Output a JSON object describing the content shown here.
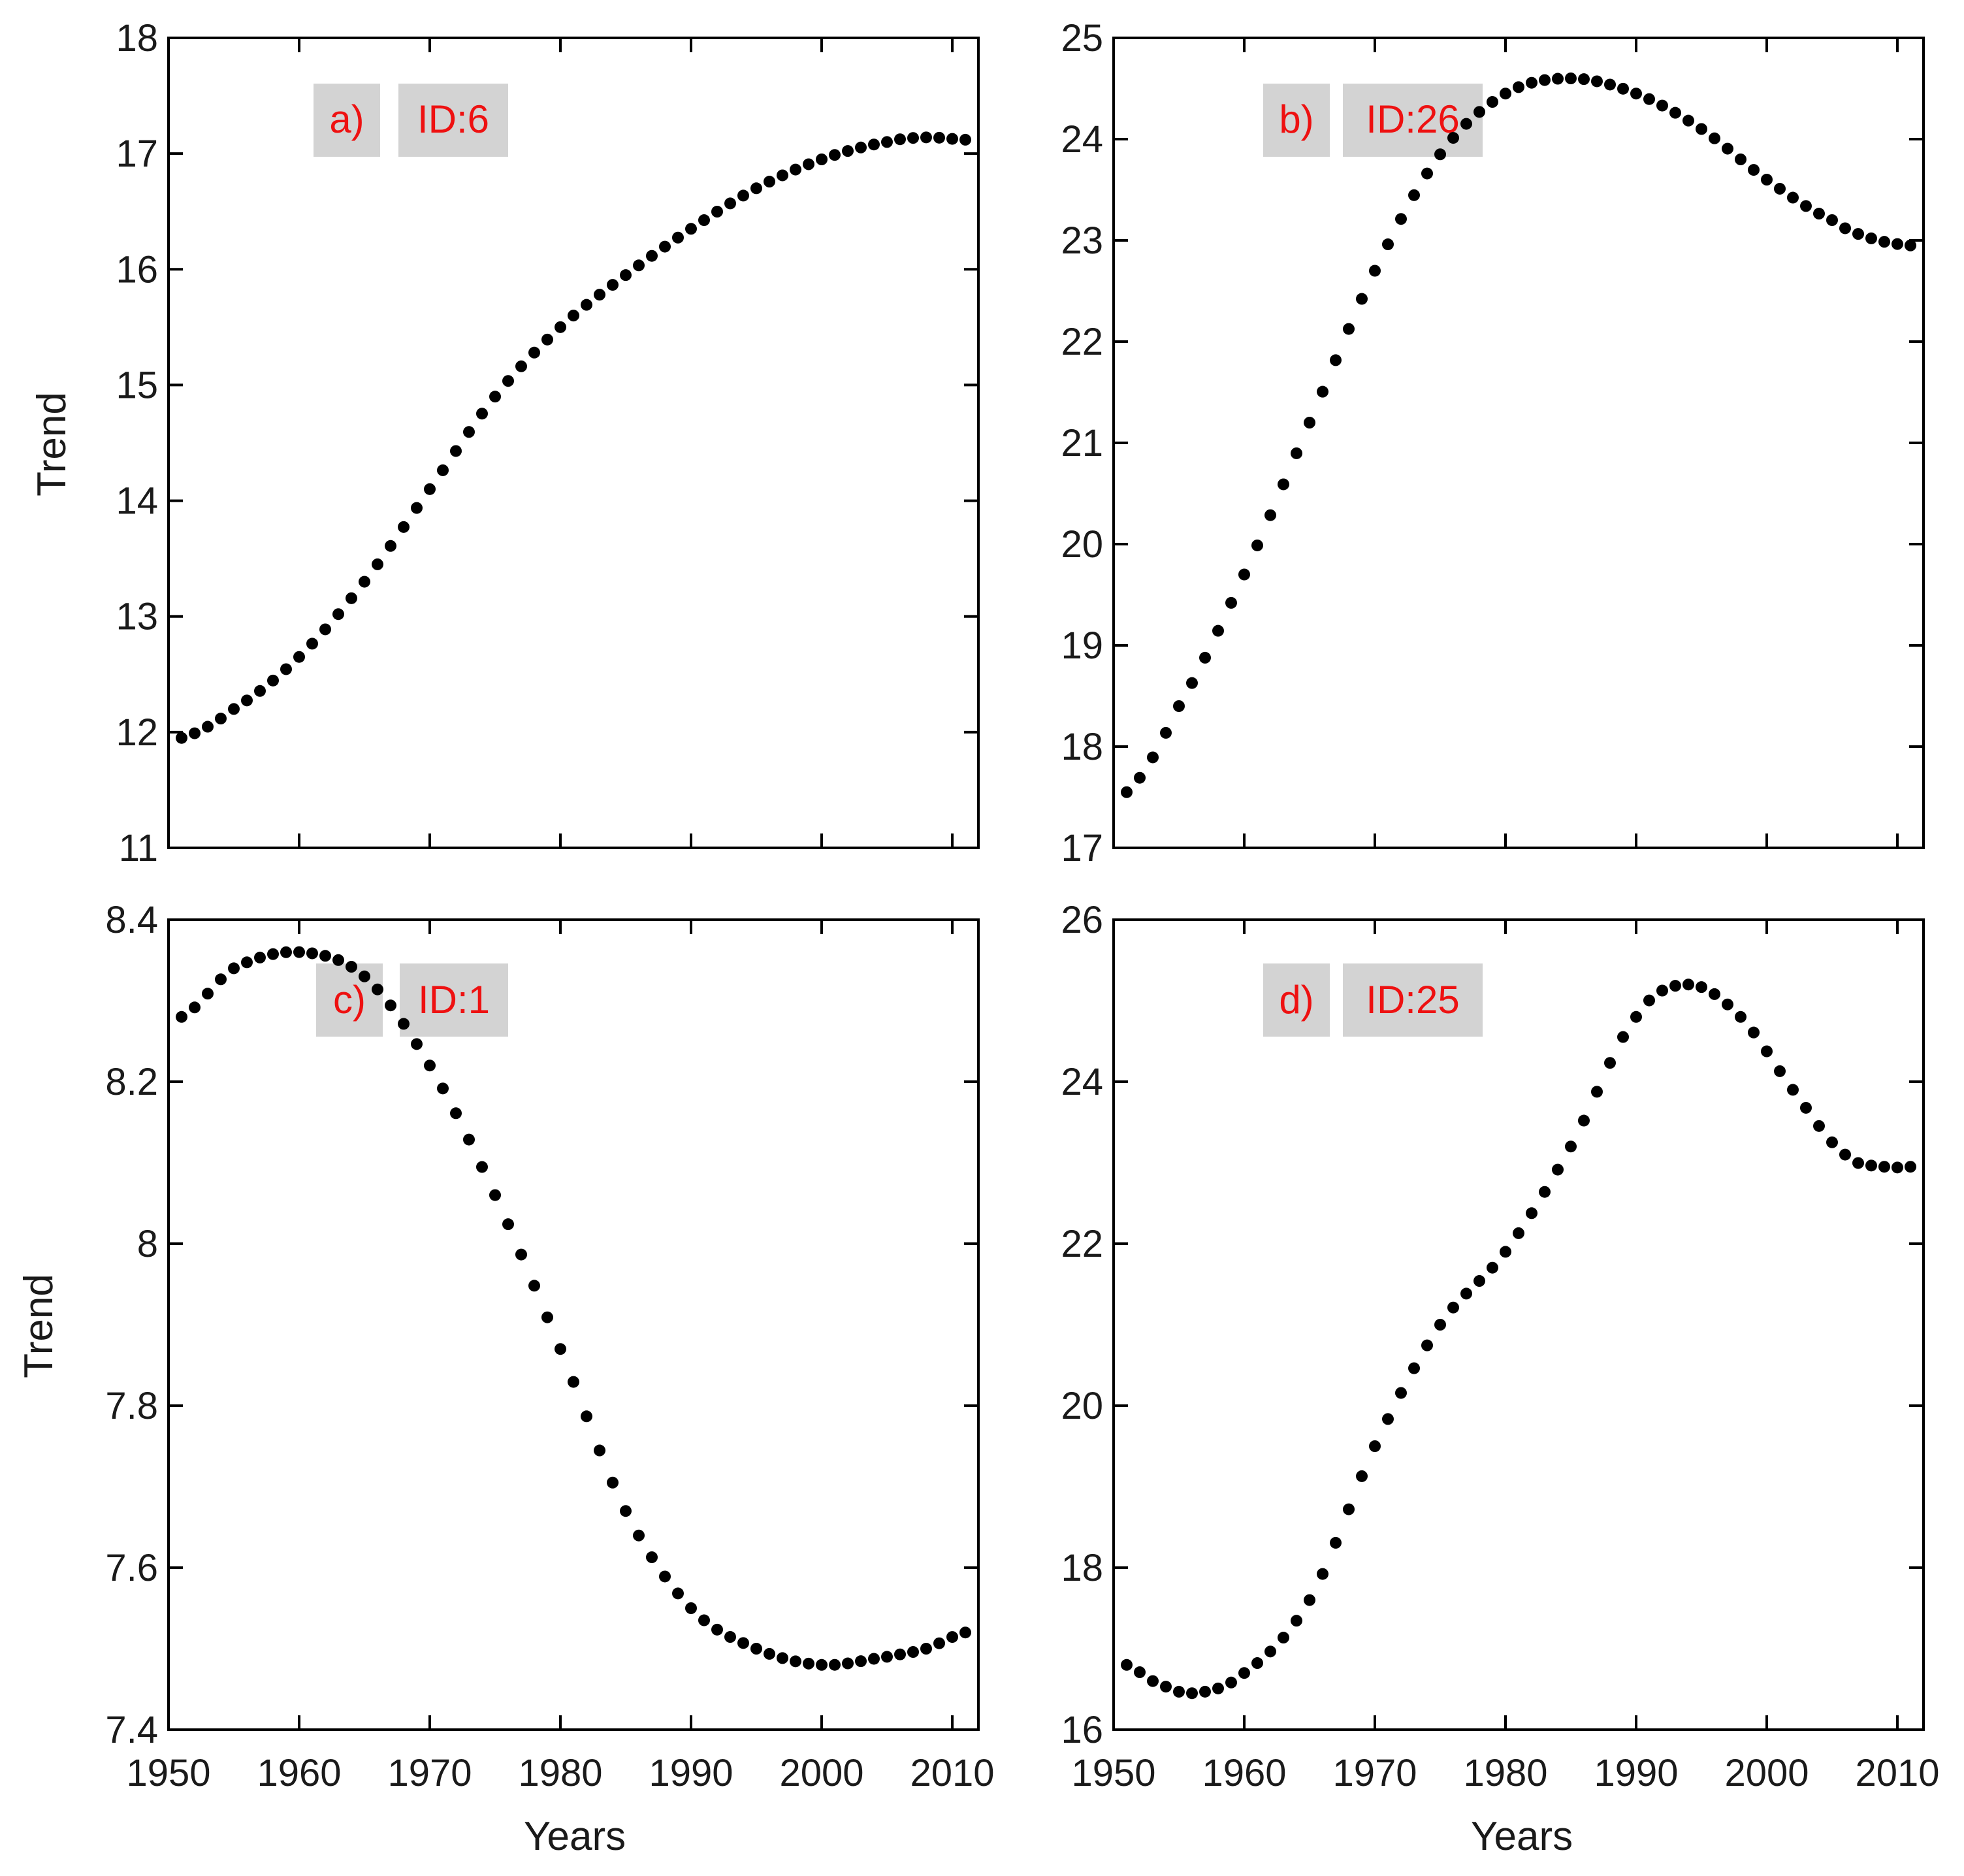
{
  "colors": {
    "label_text": "#ee1111",
    "label_box": "#d3d3d3",
    "points": "#000000"
  },
  "chart_data": [
    {
      "type": "scatter",
      "panel": "a)",
      "id_label": "ID:6",
      "xlabel": "",
      "ylabel": "Trend",
      "xlim": [
        1950,
        2012
      ],
      "ylim": [
        11,
        18
      ],
      "xticks": [
        1950,
        1960,
        1970,
        1980,
        1990,
        2000,
        2010
      ],
      "yticks": [
        11,
        12,
        13,
        14,
        15,
        16,
        17,
        18
      ],
      "ytick_labels": [
        "11",
        "12",
        "13",
        "14",
        "15",
        "16",
        "17",
        "18"
      ],
      "xtick_labels": [],
      "x": [
        1951,
        1955,
        1960,
        1965,
        1970,
        1975,
        1980,
        1985,
        1990,
        1995,
        2000,
        2005,
        2008,
        2011
      ],
      "y": [
        11.95,
        12.2,
        12.65,
        13.3,
        14.1,
        14.9,
        15.5,
        15.95,
        16.35,
        16.7,
        16.95,
        17.1,
        17.14,
        17.12
      ]
    },
    {
      "type": "scatter",
      "panel": "b)",
      "id_label": "ID:26",
      "xlabel": "",
      "ylabel": "",
      "xlim": [
        1950,
        2012
      ],
      "ylim": [
        17,
        25
      ],
      "xticks": [
        1950,
        1960,
        1970,
        1980,
        1990,
        2000,
        2010
      ],
      "yticks": [
        17,
        18,
        19,
        20,
        21,
        22,
        23,
        24,
        25
      ],
      "ytick_labels": [
        "17",
        "18",
        "19",
        "20",
        "21",
        "22",
        "23",
        "24",
        "25"
      ],
      "xtick_labels": [],
      "x": [
        1951,
        1955,
        1960,
        1965,
        1970,
        1975,
        1980,
        1985,
        1990,
        1995,
        2000,
        2005,
        2008,
        2011
      ],
      "y": [
        17.55,
        18.4,
        19.7,
        21.2,
        22.7,
        23.85,
        24.45,
        24.6,
        24.45,
        24.1,
        23.6,
        23.2,
        23.02,
        22.95
      ]
    },
    {
      "type": "scatter",
      "panel": "c)",
      "id_label": "ID:1",
      "xlabel": "Years",
      "ylabel": "Trend",
      "xlim": [
        1950,
        2012
      ],
      "ylim": [
        7.4,
        8.4
      ],
      "xticks": [
        1950,
        1960,
        1970,
        1980,
        1990,
        2000,
        2010
      ],
      "yticks": [
        7.4,
        7.6,
        7.8,
        8.0,
        8.2,
        8.4
      ],
      "ytick_labels": [
        "7.4",
        "7.6",
        "7.8",
        "8",
        "8.2",
        "8.4"
      ],
      "xtick_labels": [
        "1950",
        "1960",
        "1970",
        "1980",
        "1990",
        "2000",
        "2010"
      ],
      "x": [
        1951,
        1955,
        1960,
        1965,
        1970,
        1975,
        1980,
        1985,
        1990,
        1995,
        2000,
        2005,
        2008,
        2011
      ],
      "y": [
        8.28,
        8.34,
        8.36,
        8.33,
        8.22,
        8.06,
        7.87,
        7.67,
        7.55,
        7.5,
        7.48,
        7.49,
        7.5,
        7.52
      ]
    },
    {
      "type": "scatter",
      "panel": "d)",
      "id_label": "ID:25",
      "xlabel": "Years",
      "ylabel": "",
      "xlim": [
        1950,
        2012
      ],
      "ylim": [
        16,
        26
      ],
      "xticks": [
        1950,
        1960,
        1970,
        1980,
        1990,
        2000,
        2010
      ],
      "yticks": [
        16,
        18,
        20,
        22,
        24,
        26
      ],
      "ytick_labels": [
        "16",
        "18",
        "20",
        "22",
        "24",
        "26"
      ],
      "xtick_labels": [
        "1950",
        "1960",
        "1970",
        "1980",
        "1990",
        "2000",
        "2010"
      ],
      "x": [
        1951,
        1953,
        1956,
        1960,
        1965,
        1970,
        1975,
        1980,
        1985,
        1990,
        1994,
        1998,
        2002,
        2006,
        2009,
        2011
      ],
      "y": [
        16.8,
        16.6,
        16.45,
        16.7,
        17.6,
        19.5,
        21.0,
        21.9,
        23.2,
        24.8,
        25.2,
        24.8,
        23.9,
        23.1,
        22.95,
        22.95
      ]
    }
  ]
}
